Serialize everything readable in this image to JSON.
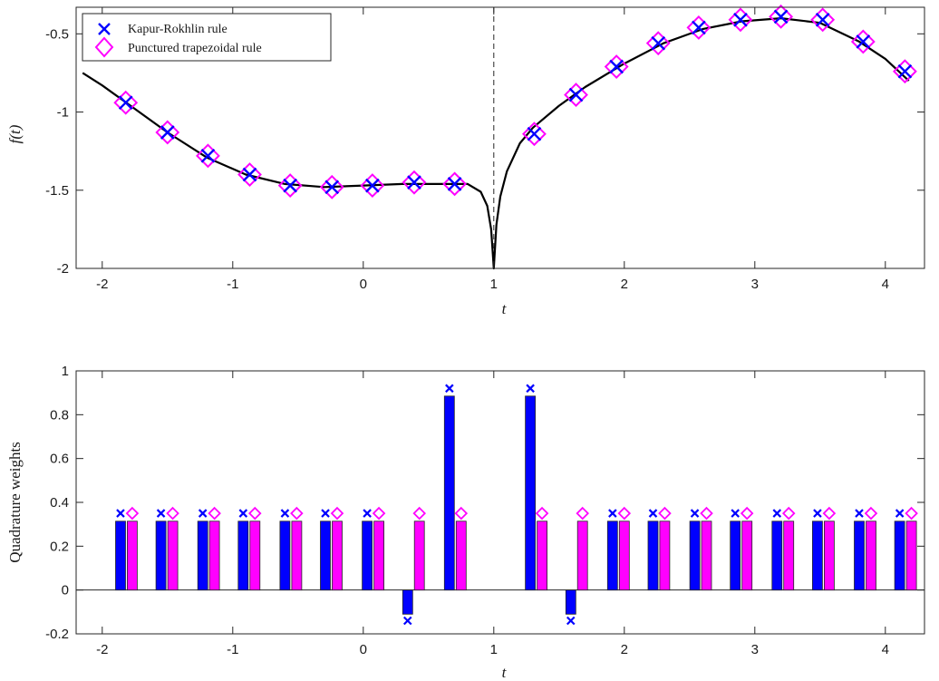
{
  "chart_data": [
    {
      "type": "line",
      "xlabel": "t",
      "ylabel": "f(t)",
      "xlim": [
        -2.2,
        4.3
      ],
      "ylim": [
        -2.0,
        -0.33
      ],
      "xticks": [
        "-2",
        "-1",
        "0",
        "1",
        "2",
        "3",
        "4"
      ],
      "yticks": [
        "-2",
        "-1.5",
        "-1",
        "-0.5"
      ],
      "xtick_values": [
        -2,
        -1,
        0,
        1,
        2,
        3,
        4
      ],
      "ytick_values": [
        -2,
        -1.5,
        -1,
        -0.5
      ],
      "singularity_x": 1,
      "grid": false,
      "legend_position": "top-left",
      "legend": [
        "Kapur-Rokhlin rule",
        "Punctured trapezoidal rule"
      ],
      "curve": {
        "x": [
          -2.15,
          -2.0,
          -1.8,
          -1.5,
          -1.2,
          -0.9,
          -0.6,
          -0.3,
          0.0,
          0.3,
          0.6,
          0.8,
          0.9,
          0.95,
          0.98,
          1.0,
          1.02,
          1.05,
          1.1,
          1.2,
          1.3,
          1.5,
          1.7,
          2.0,
          2.3,
          2.6,
          2.9,
          3.2,
          3.5,
          3.8,
          4.0,
          4.18
        ],
        "y": [
          -0.75,
          -0.83,
          -0.95,
          -1.13,
          -1.29,
          -1.4,
          -1.46,
          -1.48,
          -1.47,
          -1.46,
          -1.46,
          -1.46,
          -1.51,
          -1.6,
          -1.75,
          -2.0,
          -1.72,
          -1.54,
          -1.38,
          -1.2,
          -1.1,
          -0.96,
          -0.84,
          -0.69,
          -0.56,
          -0.47,
          -0.42,
          -0.4,
          -0.43,
          -0.55,
          -0.66,
          -0.8
        ]
      },
      "series": [
        {
          "name": "Kapur-Rokhlin rule",
          "color": "#0000ff",
          "marker": "x",
          "x": [
            -1.82,
            -1.5,
            -1.19,
            -0.87,
            -0.56,
            -0.24,
            0.07,
            0.39,
            0.7,
            1.31,
            1.63,
            1.94,
            2.26,
            2.57,
            2.89,
            3.2,
            3.52,
            3.83,
            4.15
          ],
          "y": [
            -0.94,
            -1.13,
            -1.28,
            -1.4,
            -1.47,
            -1.48,
            -1.47,
            -1.45,
            -1.46,
            -1.14,
            -0.89,
            -0.71,
            -0.56,
            -0.46,
            -0.41,
            -0.39,
            -0.41,
            -0.55,
            -0.74
          ]
        },
        {
          "name": "Punctured trapezoidal rule",
          "color": "#ff00ff",
          "marker": "diamond",
          "x": [
            -1.82,
            -1.5,
            -1.19,
            -0.87,
            -0.56,
            -0.24,
            0.07,
            0.39,
            0.7,
            1.31,
            1.63,
            1.94,
            2.26,
            2.57,
            2.89,
            3.2,
            3.52,
            3.83,
            4.15
          ],
          "y": [
            -0.94,
            -1.13,
            -1.28,
            -1.4,
            -1.47,
            -1.48,
            -1.47,
            -1.45,
            -1.46,
            -1.14,
            -0.89,
            -0.71,
            -0.56,
            -0.46,
            -0.41,
            -0.39,
            -0.41,
            -0.55,
            -0.74
          ]
        }
      ]
    },
    {
      "type": "bar",
      "xlabel": "t",
      "ylabel": "Quadrature weights",
      "xlim": [
        -2.2,
        4.3
      ],
      "ylim": [
        -0.2,
        1.0
      ],
      "xticks": [
        "-2",
        "-1",
        "0",
        "1",
        "2",
        "3",
        "4"
      ],
      "yticks": [
        "-0.2",
        "0",
        "0.2",
        "0.4",
        "0.6",
        "0.8",
        "1"
      ],
      "xtick_values": [
        -2,
        -1,
        0,
        1,
        2,
        3,
        4
      ],
      "ytick_values": [
        -0.2,
        0,
        0.2,
        0.4,
        0.6,
        0.8,
        1.0
      ],
      "grid": false,
      "series": [
        {
          "name": "Kapur-Rokhlin rule",
          "color": "#0000ff",
          "marker": "x",
          "x": [
            -1.86,
            -1.55,
            -1.23,
            -0.92,
            -0.6,
            -0.29,
            0.03,
            0.34,
            0.66,
            1.28,
            1.59,
            1.91,
            2.22,
            2.54,
            2.85,
            3.17,
            3.48,
            3.8,
            4.11
          ],
          "values": [
            0.314,
            0.314,
            0.314,
            0.314,
            0.314,
            0.314,
            0.314,
            -0.11,
            0.885,
            0.885,
            -0.11,
            0.314,
            0.314,
            0.314,
            0.314,
            0.314,
            0.314,
            0.314,
            0.314
          ],
          "markers": [
            0.35,
            0.35,
            0.35,
            0.35,
            0.35,
            0.35,
            0.35,
            -0.14,
            0.92,
            0.92,
            -0.14,
            0.35,
            0.35,
            0.35,
            0.35,
            0.35,
            0.35,
            0.35,
            0.35
          ]
        },
        {
          "name": "Punctured trapezoidal rule",
          "color": "#ff00ff",
          "marker": "diamond",
          "x": [
            -1.77,
            -1.46,
            -1.14,
            -0.83,
            -0.51,
            -0.2,
            0.12,
            0.43,
            0.75,
            1.37,
            1.68,
            2.0,
            2.31,
            2.63,
            2.94,
            3.26,
            3.57,
            3.89,
            4.2
          ],
          "values": [
            0.314,
            0.314,
            0.314,
            0.314,
            0.314,
            0.314,
            0.314,
            0.314,
            0.314,
            0.314,
            0.314,
            0.314,
            0.314,
            0.314,
            0.314,
            0.314,
            0.314,
            0.314,
            0.314
          ],
          "markers": [
            0.35,
            0.35,
            0.35,
            0.35,
            0.35,
            0.35,
            0.35,
            0.35,
            0.35,
            0.35,
            0.35,
            0.35,
            0.35,
            0.35,
            0.35,
            0.35,
            0.35,
            0.35,
            0.35
          ]
        }
      ]
    }
  ]
}
